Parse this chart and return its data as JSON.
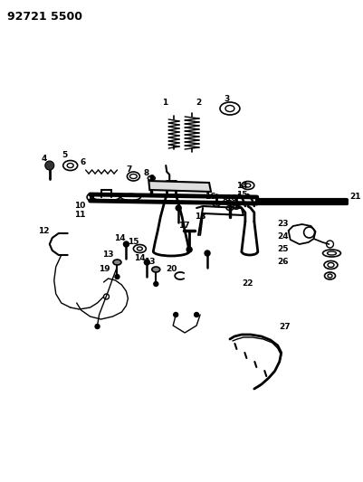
{
  "title": "92721 5500",
  "bg_color": "#ffffff",
  "fig_width": 4.02,
  "fig_height": 5.33,
  "dpi": 100
}
